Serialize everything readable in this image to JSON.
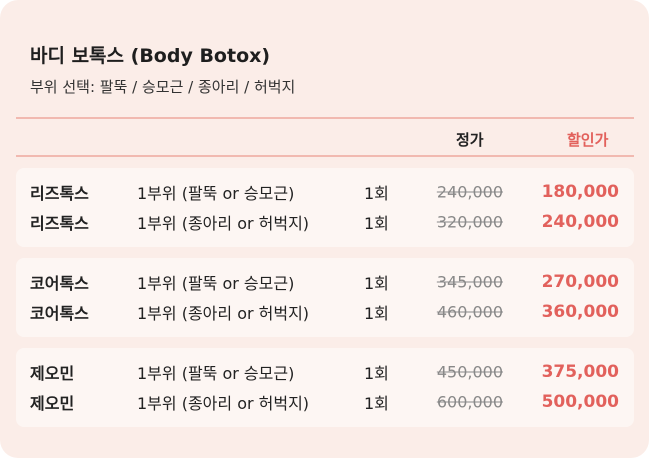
{
  "header": {
    "title": "바디 보톡스 (Body Botox)",
    "subtitle": "부위 선택: 팔뚝 / 승모근 / 종아리 / 허벅지"
  },
  "table": {
    "columns": {
      "price": "정가",
      "sale": "할인가"
    },
    "groups": [
      {
        "rows": [
          [
            "리즈톡스",
            "1부위 (팔뚝 or 승모근)",
            "1회",
            "240,000",
            "180,000"
          ],
          [
            "리즈톡스",
            "1부위 (종아리 or 허벅지)",
            "1회",
            "320,000",
            "240,000"
          ]
        ]
      },
      {
        "rows": [
          [
            "코어톡스",
            "1부위 (팔뚝 or 승모근)",
            "1회",
            "345,000",
            "270,000"
          ],
          [
            "코어톡스",
            "1부위 (종아리 or 허벅지)",
            "1회",
            "460,000",
            "360,000"
          ]
        ]
      },
      {
        "rows": [
          [
            "제오민",
            "1부위 (팔뚝 or 승모근)",
            "1회",
            "450,000",
            "375,000"
          ],
          [
            "제오민",
            "1부위 (종아리 or 허벅지)",
            "1회",
            "600,000",
            "500,000"
          ]
        ]
      }
    ]
  }
}
